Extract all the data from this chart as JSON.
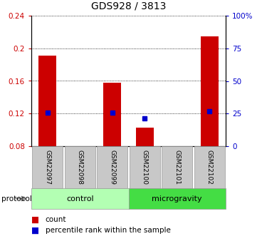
{
  "title": "GDS928 / 3813",
  "samples": [
    "GSM22097",
    "GSM22098",
    "GSM22099",
    "GSM22100",
    "GSM22101",
    "GSM22102"
  ],
  "count_values": [
    0.191,
    0.08,
    0.158,
    0.103,
    0.08,
    0.215
  ],
  "percentile_values": [
    0.121,
    null,
    0.121,
    0.114,
    null,
    0.123
  ],
  "ylim_left": [
    0.08,
    0.24
  ],
  "ylim_right": [
    0,
    100
  ],
  "yticks_left": [
    0.08,
    0.12,
    0.16,
    0.2,
    0.24
  ],
  "ytick_labels_left": [
    "0.08",
    "0.12",
    "0.16",
    "0.2",
    "0.24"
  ],
  "yticks_right": [
    0,
    25,
    50,
    75,
    100
  ],
  "ytick_labels_right": [
    "0",
    "25",
    "50",
    "75",
    "100%"
  ],
  "bar_color": "#cc0000",
  "dot_color": "#0000cc",
  "bar_bottom": 0.08,
  "control_label": "control",
  "microgravity_label": "microgravity",
  "protocol_label": "protocol",
  "control_color": "#b3ffb3",
  "microgravity_color": "#44dd44",
  "sample_box_color": "#c8c8c8",
  "legend_count": "count",
  "legend_percentile": "percentile rank within the sample",
  "grid_color": "black",
  "title_fontsize": 10,
  "tick_fontsize": 7.5,
  "sample_fontsize": 6.5,
  "protocol_fontsize": 8,
  "legend_fontsize": 7.5
}
